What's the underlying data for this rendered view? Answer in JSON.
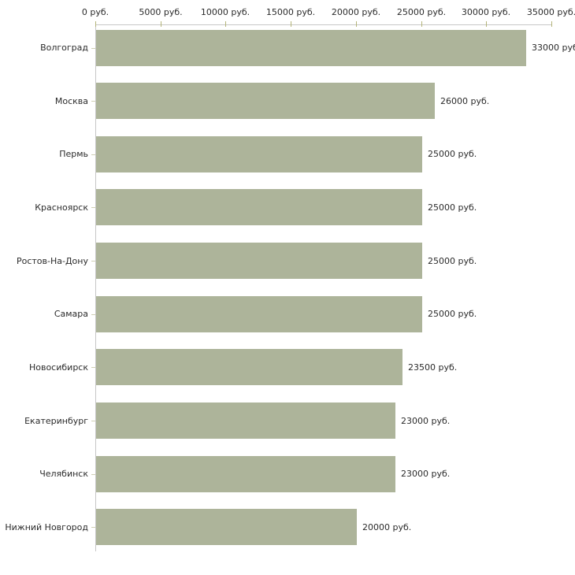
{
  "chart_data": {
    "type": "bar",
    "orientation": "horizontal",
    "title": "",
    "categories": [
      "Волгоград",
      "Москва",
      "Пермь",
      "Красноярск",
      "Ростов-На-Дону",
      "Самара",
      "Новосибирск",
      "Екатеринбург",
      "Челябинск",
      "Нижний Новгород"
    ],
    "values": [
      33000,
      26000,
      25000,
      25000,
      25000,
      25000,
      23500,
      23000,
      23000,
      20000
    ],
    "value_labels": [
      "33000 руб",
      "26000 руб.",
      "25000 руб.",
      "25000 руб.",
      "25000 руб.",
      "25000 руб.",
      "23500 руб.",
      "23000 руб.",
      "23000 руб.",
      "20000 руб."
    ],
    "x_ticks": [
      "0 руб.",
      "5000 руб.",
      "10000 руб.",
      "15000 руб.",
      "20000 руб.",
      "25000 руб.",
      "30000 руб.",
      "35000 руб."
    ],
    "x_tick_values": [
      0,
      5000,
      10000,
      15000,
      20000,
      25000,
      30000,
      35000
    ],
    "xlim": [
      0,
      35000
    ],
    "grid": false,
    "legend_position": "none",
    "colors": {
      "bar": "#adb49a",
      "axis": "#c6c6c6",
      "x_tick_mark": "#b4b478",
      "y_tick_mark": "#cfcfb4",
      "text": "#2b2b2b"
    }
  }
}
